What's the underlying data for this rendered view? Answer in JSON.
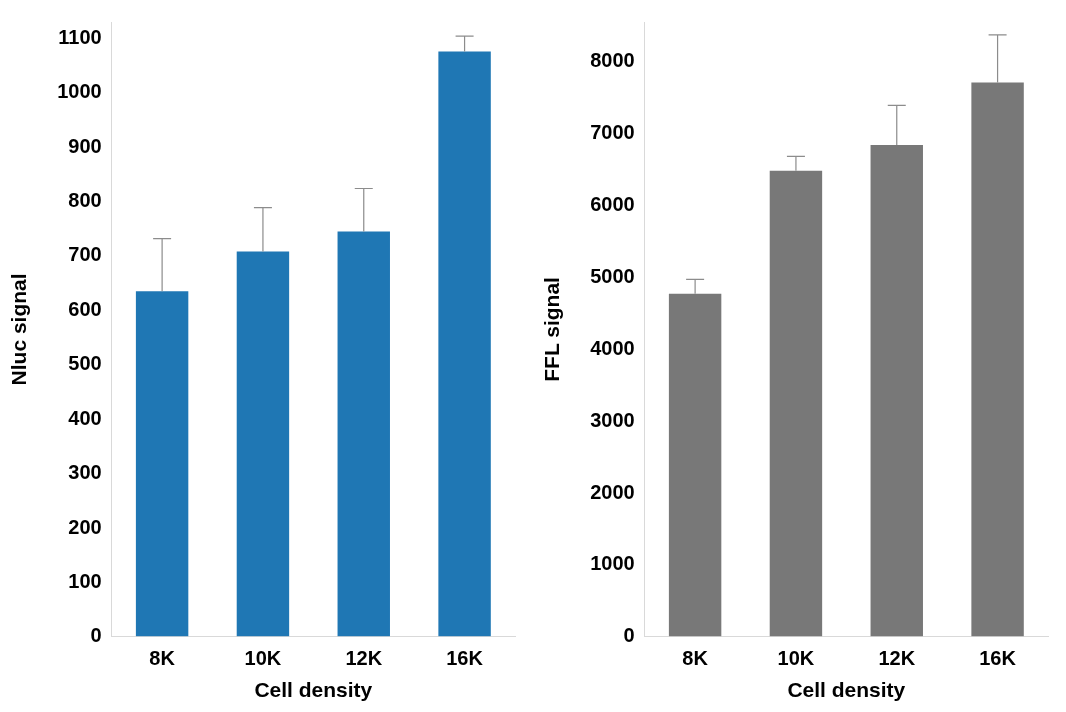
{
  "chart_data": [
    {
      "type": "bar",
      "xlabel": "Cell density",
      "ylabel": "Nluc signal",
      "categories": [
        "8K",
        "10K",
        "12K",
        "16K"
      ],
      "values": [
        635,
        708,
        745,
        1076
      ],
      "color": "#1f77b4",
      "errors": [
        [
          635,
          732
        ],
        [
          708,
          789
        ],
        [
          745,
          824
        ],
        [
          1076,
          1104
        ]
      ],
      "ylim": [
        0,
        1130
      ],
      "yticks": [
        0,
        100,
        200,
        300,
        400,
        500,
        600,
        700,
        800,
        900,
        1000,
        1100
      ],
      "grid": false
    },
    {
      "type": "bar",
      "xlabel": "Cell density",
      "ylabel": "FFL signal",
      "categories": [
        "8K",
        "10K",
        "12K",
        "16K"
      ],
      "values": [
        4770,
        6480,
        6840,
        7710
      ],
      "color": "#787878",
      "errors": [
        [
          4770,
          4970
        ],
        [
          6480,
          6680
        ],
        [
          6840,
          7390
        ],
        [
          7710,
          8370
        ]
      ],
      "ylim": [
        0,
        8550
      ],
      "yticks": [
        0,
        1000,
        2000,
        3000,
        4000,
        5000,
        6000,
        7000,
        8000
      ],
      "grid": false
    }
  ]
}
